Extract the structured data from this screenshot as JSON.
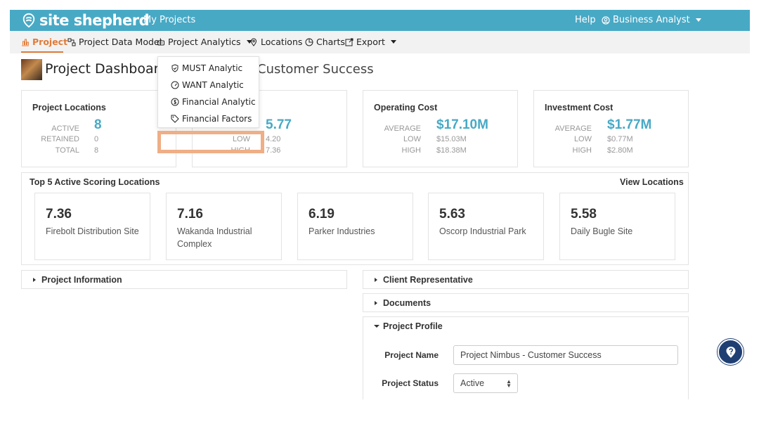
{
  "header": {
    "logo_text": "site shepherd",
    "my_projects": "My Projects",
    "help": "Help",
    "user_role": "Business Analyst"
  },
  "nav": {
    "project": "Project",
    "data_model": "Project Data Model",
    "analytics": "Project Analytics",
    "locations": "Locations",
    "charts": "Charts",
    "export": "Export"
  },
  "analytics_menu": [
    "MUST Analytic",
    "WANT Analytic",
    "Financial Analytic",
    "Financial Factors"
  ],
  "page": {
    "title": "Project Dashboard |",
    "title_rest": "Customer Success"
  },
  "stats": {
    "locations": {
      "title": "Project Locations",
      "active_label": "ACTIVE",
      "active": "8",
      "retained_label": "RETAINED",
      "retained": "0",
      "total_label": "TOTAL",
      "total": "8"
    },
    "score": {
      "avg": "5.77",
      "low_label": "LOW",
      "low": "4.20",
      "high_label": "HIGH",
      "high": "7.36"
    },
    "operating": {
      "title": "Operating Cost",
      "avg_label": "AVERAGE",
      "avg": "$17.10M",
      "low_label": "LOW",
      "low": "$15.03M",
      "high_label": "HIGH",
      "high": "$18.38M"
    },
    "investment": {
      "title": "Investment Cost",
      "avg_label": "AVERAGE",
      "avg": "$1.77M",
      "low_label": "LOW",
      "low": "$0.77M",
      "high_label": "HIGH",
      "high": "$2.80M"
    }
  },
  "top5": {
    "title": "Top 5 Active Scoring Locations",
    "view_link": "View Locations",
    "items": [
      {
        "score": "7.36",
        "name": "Firebolt Distribution Site"
      },
      {
        "score": "7.16",
        "name": "Wakanda Industrial Complex"
      },
      {
        "score": "6.19",
        "name": "Parker Industries"
      },
      {
        "score": "5.63",
        "name": "Oscorp Industrial Park"
      },
      {
        "score": "5.58",
        "name": "Daily Bugle Site"
      }
    ]
  },
  "sections": {
    "project_info": "Project Information",
    "client_rep": "Client Representative",
    "documents": "Documents",
    "project_profile": "Project Profile"
  },
  "profile": {
    "name_label": "Project Name",
    "name_value": "Project Nimbus - Customer Success",
    "status_label": "Project Status",
    "status_value": "Active"
  },
  "colors": {
    "topbar": "#48a9c5",
    "accent": "#e07b39",
    "stat_value": "#48a9c5",
    "highlight": "#efae85",
    "help_fab": "#1f3f73"
  }
}
